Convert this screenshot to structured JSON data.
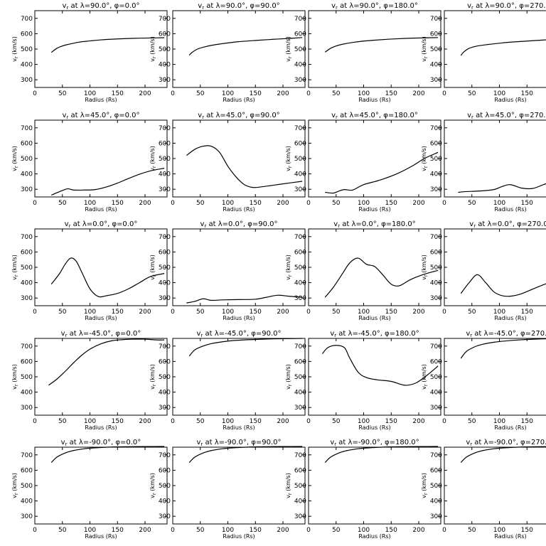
{
  "chart_data": [
    {
      "type": "line",
      "title": "v_r at λ=90.0°, φ=0.0°",
      "xlabel": "Radius (Rs)",
      "ylabel": "v_r (km/s)",
      "xlim": [
        0,
        240
      ],
      "ylim": [
        250,
        750
      ],
      "x": [
        30,
        40,
        50,
        60,
        80,
        100,
        120,
        150,
        180,
        210,
        235
      ],
      "y": [
        478,
        505,
        520,
        530,
        545,
        553,
        560,
        566,
        570,
        572,
        574
      ]
    },
    {
      "type": "line",
      "title": "v_r at λ=90.0°, φ=90.0°",
      "xlabel": "Radius (Rs)",
      "ylabel": "v_r (km/s)",
      "xlim": [
        0,
        240
      ],
      "ylim": [
        250,
        750
      ],
      "x": [
        30,
        35,
        45,
        60,
        80,
        100,
        120,
        150,
        180,
        210,
        235
      ],
      "y": [
        460,
        478,
        500,
        516,
        530,
        540,
        548,
        556,
        563,
        569,
        575
      ]
    },
    {
      "type": "line",
      "title": "v_r at λ=90.0°, φ=180.0°",
      "xlabel": "Radius (Rs)",
      "ylabel": "v_r (km/s)",
      "xlim": [
        0,
        240
      ],
      "ylim": [
        250,
        750
      ],
      "x": [
        30,
        40,
        50,
        60,
        80,
        100,
        120,
        150,
        180,
        210,
        235
      ],
      "y": [
        480,
        505,
        520,
        530,
        543,
        552,
        558,
        565,
        570,
        573,
        575
      ]
    },
    {
      "type": "line",
      "title": "v_r at λ=90.0°, φ=270.0°",
      "xlabel": "Radius (Rs)",
      "ylabel": "v_r (km/s)",
      "xlim": [
        0,
        240
      ],
      "ylim": [
        250,
        750
      ],
      "x": [
        30,
        35,
        45,
        60,
        80,
        100,
        120,
        150,
        180,
        210,
        235
      ],
      "y": [
        458,
        480,
        505,
        520,
        530,
        538,
        545,
        552,
        559,
        565,
        572
      ]
    },
    {
      "type": "line",
      "title": "v_r at λ=45.0°, φ=0.0°",
      "xlabel": "Radius (Rs)",
      "ylabel": "v_r (km/s)",
      "xlim": [
        0,
        240
      ],
      "ylim": [
        250,
        750
      ],
      "x": [
        30,
        50,
        60,
        70,
        90,
        110,
        130,
        150,
        170,
        190,
        210,
        235
      ],
      "y": [
        262,
        292,
        303,
        295,
        295,
        298,
        315,
        340,
        370,
        398,
        420,
        437
      ]
    },
    {
      "type": "line",
      "title": "v_r at λ=45.0°, φ=90.0°",
      "xlabel": "Radius (Rs)",
      "ylabel": "v_r (km/s)",
      "xlim": [
        0,
        240
      ],
      "ylim": [
        250,
        750
      ],
      "x": [
        25,
        40,
        55,
        70,
        85,
        100,
        115,
        130,
        145,
        160,
        180,
        210,
        235
      ],
      "y": [
        520,
        560,
        580,
        580,
        540,
        450,
        380,
        330,
        312,
        315,
        325,
        340,
        352
      ]
    },
    {
      "type": "line",
      "title": "v_r at λ=45.0°, φ=180.0°",
      "xlabel": "Radius (Rs)",
      "ylabel": "v_r (km/s)",
      "xlim": [
        0,
        240
      ],
      "ylim": [
        250,
        750
      ],
      "x": [
        30,
        45,
        55,
        65,
        80,
        100,
        130,
        160,
        190,
        210,
        235
      ],
      "y": [
        280,
        275,
        288,
        298,
        295,
        330,
        360,
        400,
        455,
        500,
        540
      ]
    },
    {
      "type": "line",
      "title": "v_r at λ=45.0°, φ=270.0°",
      "xlabel": "Radius (Rs)",
      "ylabel": "v_r (km/s)",
      "xlim": [
        0,
        240
      ],
      "ylim": [
        250,
        750
      ],
      "x": [
        25,
        40,
        55,
        70,
        90,
        105,
        120,
        140,
        160,
        180,
        200,
        220,
        235
      ],
      "y": [
        280,
        285,
        287,
        290,
        298,
        318,
        330,
        308,
        305,
        330,
        355,
        362,
        362
      ]
    },
    {
      "type": "line",
      "title": "v_r at λ=0.0°, φ=0.0°",
      "xlabel": "Radius (Rs)",
      "ylabel": "v_r (km/s)",
      "xlim": [
        0,
        240
      ],
      "ylim": [
        250,
        750
      ],
      "x": [
        30,
        45,
        55,
        65,
        75,
        85,
        100,
        115,
        130,
        150,
        170,
        190,
        210,
        235
      ],
      "y": [
        390,
        460,
        520,
        560,
        540,
        470,
        360,
        310,
        315,
        330,
        360,
        400,
        440,
        460
      ]
    },
    {
      "type": "line",
      "title": "v_r at λ=0.0°, φ=90.0°",
      "xlabel": "Radius (Rs)",
      "ylabel": "v_r (km/s)",
      "xlim": [
        0,
        240
      ],
      "ylim": [
        250,
        750
      ],
      "x": [
        25,
        40,
        55,
        70,
        90,
        120,
        150,
        170,
        190,
        210,
        235
      ],
      "y": [
        268,
        278,
        295,
        285,
        288,
        290,
        292,
        305,
        318,
        312,
        305
      ]
    },
    {
      "type": "line",
      "title": "v_r at λ=0.0°, φ=180.0°",
      "xlabel": "Radius (Rs)",
      "ylabel": "v_r (km/s)",
      "xlim": [
        0,
        240
      ],
      "ylim": [
        250,
        750
      ],
      "x": [
        30,
        45,
        60,
        75,
        90,
        105,
        120,
        135,
        150,
        165,
        185,
        210,
        235
      ],
      "y": [
        305,
        370,
        450,
        530,
        560,
        520,
        505,
        450,
        390,
        380,
        420,
        455,
        480
      ]
    },
    {
      "type": "line",
      "title": "v_r at λ=0.0°, φ=270.0°",
      "xlabel": "Radius (Rs)",
      "ylabel": "v_r (km/s)",
      "xlim": [
        0,
        240
      ],
      "ylim": [
        250,
        750
      ],
      "x": [
        30,
        45,
        60,
        75,
        90,
        105,
        120,
        140,
        165,
        190,
        210,
        225,
        235
      ],
      "y": [
        330,
        400,
        452,
        400,
        340,
        315,
        312,
        328,
        365,
        400,
        415,
        385,
        335
      ]
    },
    {
      "type": "line",
      "title": "v_r at λ=-45.0°, φ=0.0°",
      "xlabel": "Radius (Rs)",
      "ylabel": "v_r (km/s)",
      "xlim": [
        0,
        240
      ],
      "ylim": [
        250,
        750
      ],
      "x": [
        25,
        40,
        55,
        70,
        85,
        100,
        120,
        140,
        160,
        180,
        200,
        220,
        235
      ],
      "y": [
        445,
        485,
        535,
        590,
        640,
        680,
        715,
        735,
        742,
        745,
        745,
        740,
        740
      ]
    },
    {
      "type": "line",
      "title": "v_r at λ=-45.0°, φ=90.0°",
      "xlabel": "Radius (Rs)",
      "ylabel": "v_r (km/s)",
      "xlim": [
        0,
        240
      ],
      "ylim": [
        250,
        750
      ],
      "x": [
        30,
        40,
        55,
        70,
        90,
        110,
        140,
        170,
        200,
        235
      ],
      "y": [
        635,
        675,
        700,
        716,
        728,
        736,
        742,
        746,
        748,
        750
      ]
    },
    {
      "type": "line",
      "title": "v_r at λ=-45.0°, φ=180.0°",
      "xlabel": "Radius (Rs)",
      "ylabel": "v_r (km/s)",
      "xlim": [
        0,
        240
      ],
      "ylim": [
        250,
        750
      ],
      "x": [
        25,
        35,
        50,
        65,
        75,
        90,
        105,
        125,
        150,
        175,
        195,
        215,
        235
      ],
      "y": [
        650,
        690,
        705,
        690,
        620,
        530,
        495,
        480,
        470,
        445,
        460,
        510,
        570
      ]
    },
    {
      "type": "line",
      "title": "v_r at λ=-45.0°, φ=270.0°",
      "xlabel": "Radius (Rs)",
      "ylabel": "v_r (km/s)",
      "xlim": [
        0,
        240
      ],
      "ylim": [
        250,
        750
      ],
      "x": [
        30,
        40,
        55,
        70,
        90,
        110,
        140,
        170,
        200,
        235
      ],
      "y": [
        620,
        665,
        695,
        712,
        725,
        733,
        741,
        746,
        749,
        752
      ]
    },
    {
      "type": "line",
      "title": "v_r at λ=-90.0°, φ=0.0°",
      "xlabel": "Radius (Rs)",
      "ylabel": "v_r (km/s)",
      "xlim": [
        0,
        240
      ],
      "ylim": [
        250,
        750
      ],
      "x": [
        30,
        40,
        55,
        70,
        90,
        110,
        140,
        170,
        200,
        235
      ],
      "y": [
        650,
        685,
        712,
        728,
        740,
        746,
        751,
        753,
        754,
        755
      ]
    },
    {
      "type": "line",
      "title": "v_r at λ=-90.0°, φ=90.0°",
      "xlabel": "Radius (Rs)",
      "ylabel": "v_r (km/s)",
      "xlim": [
        0,
        240
      ],
      "ylim": [
        250,
        750
      ],
      "x": [
        30,
        40,
        55,
        70,
        90,
        110,
        140,
        170,
        200,
        235
      ],
      "y": [
        650,
        685,
        712,
        728,
        740,
        746,
        751,
        753,
        754,
        755
      ]
    },
    {
      "type": "line",
      "title": "v_r at λ=-90.0°, φ=180.0°",
      "xlabel": "Radius (Rs)",
      "ylabel": "v_r (km/s)",
      "xlim": [
        0,
        240
      ],
      "ylim": [
        250,
        750
      ],
      "x": [
        30,
        40,
        55,
        70,
        90,
        110,
        140,
        170,
        200,
        235
      ],
      "y": [
        650,
        685,
        712,
        728,
        740,
        746,
        751,
        753,
        754,
        755
      ]
    },
    {
      "type": "line",
      "title": "v_r at λ=-90.0°, φ=270.0°",
      "xlabel": "Radius (Rs)",
      "ylabel": "v_r (km/s)",
      "xlim": [
        0,
        240
      ],
      "ylim": [
        250,
        750
      ],
      "x": [
        30,
        40,
        55,
        70,
        90,
        110,
        140,
        170,
        200,
        235
      ],
      "y": [
        650,
        685,
        712,
        728,
        740,
        746,
        751,
        753,
        754,
        755
      ]
    }
  ],
  "x_ticks": [
    0,
    50,
    100,
    150,
    200
  ],
  "y_ticks": [
    300,
    400,
    500,
    600,
    700
  ],
  "line_color": "#000000",
  "background": "#ffffff"
}
